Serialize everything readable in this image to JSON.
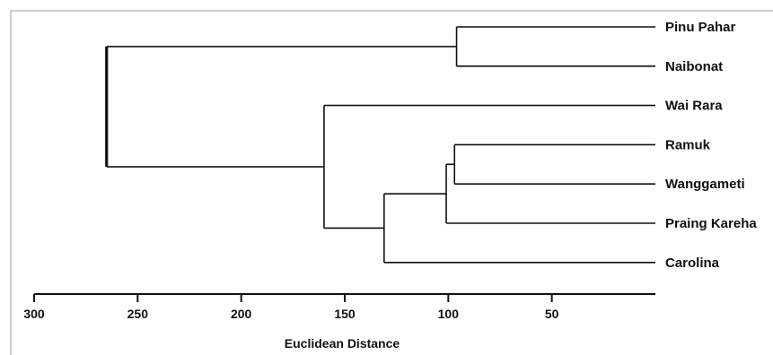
{
  "chart_data": {
    "type": "dendrogram",
    "xlabel": "Euclidean Distance",
    "xlim": [
      300,
      0
    ],
    "xticks": [
      300,
      250,
      200,
      150,
      100,
      50
    ],
    "leaves": [
      "Pinu Pahar",
      "Naibonat",
      "Wai Rara",
      "Ramuk",
      "Wanggameti",
      "Praing Kareha",
      "Carolina"
    ],
    "merges": [
      {
        "id": "n1",
        "children": [
          "Ramuk",
          "Wanggameti"
        ],
        "height": 97
      },
      {
        "id": "n2",
        "children": [
          "n1",
          "Praing Kareha"
        ],
        "height": 101
      },
      {
        "id": "n3",
        "children": [
          "n2",
          "Carolina"
        ],
        "height": 131
      },
      {
        "id": "n4",
        "children": [
          "Wai Rara",
          "n3"
        ],
        "height": 160
      },
      {
        "id": "n5",
        "children": [
          "Pinu Pahar",
          "Naibonat"
        ],
        "height": 96
      },
      {
        "id": "n6",
        "children": [
          "n5",
          "n4"
        ],
        "height": 265
      }
    ],
    "leaf_tip_distance": 0,
    "grid": false,
    "legend": "none"
  }
}
